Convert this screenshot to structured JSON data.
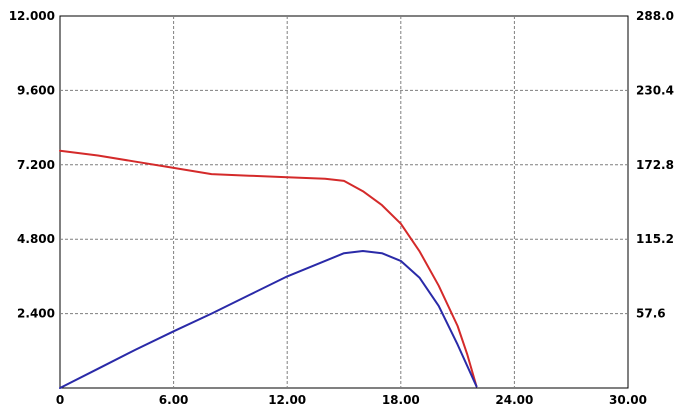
{
  "chart_data": {
    "type": "line",
    "title": "",
    "xlabel": "",
    "ylabel_left": "",
    "ylabel_right": "",
    "xlim": [
      0,
      30
    ],
    "ylim_left": [
      0,
      12
    ],
    "ylim_right": [
      0,
      288
    ],
    "grid": true,
    "x_ticks": [
      {
        "value": 0,
        "label": "0"
      },
      {
        "value": 6,
        "label": "6.00"
      },
      {
        "value": 12,
        "label": "12.00"
      },
      {
        "value": 18,
        "label": "18.00"
      },
      {
        "value": 24,
        "label": "24.00"
      },
      {
        "value": 30,
        "label": "30.00"
      }
    ],
    "y_ticks_left": [
      {
        "value": 2.4,
        "label": "2.400"
      },
      {
        "value": 4.8,
        "label": "4.800"
      },
      {
        "value": 7.2,
        "label": "7.200"
      },
      {
        "value": 9.6,
        "label": "9.600"
      },
      {
        "value": 12,
        "label": "12.000"
      }
    ],
    "y_ticks_right": [
      {
        "value": 57.6,
        "label": "57.6"
      },
      {
        "value": 115.2,
        "label": "115.2"
      },
      {
        "value": 172.8,
        "label": "172.8"
      },
      {
        "value": 230.4,
        "label": "230.4"
      },
      {
        "value": 288,
        "label": "288.0"
      }
    ],
    "series": [
      {
        "color": "#d42a2a",
        "axis": "left",
        "x": [
          0,
          2,
          4,
          6,
          8,
          10,
          12,
          14,
          15,
          16,
          17,
          18,
          19,
          20,
          21,
          21.5,
          22
        ],
        "y": [
          7.65,
          7.5,
          7.3,
          7.1,
          6.9,
          6.85,
          6.8,
          6.75,
          6.68,
          6.35,
          5.9,
          5.3,
          4.4,
          3.3,
          2.0,
          1.1,
          0.05
        ]
      },
      {
        "color": "#2a2aa8",
        "axis": "left",
        "x": [
          0,
          2,
          4,
          6,
          8,
          10,
          12,
          14,
          15,
          16,
          17,
          18,
          19,
          20,
          21,
          22
        ],
        "y": [
          0.0,
          0.62,
          1.24,
          1.83,
          2.4,
          3.0,
          3.6,
          4.1,
          4.35,
          4.42,
          4.35,
          4.1,
          3.55,
          2.65,
          1.4,
          0.05
        ]
      }
    ]
  }
}
